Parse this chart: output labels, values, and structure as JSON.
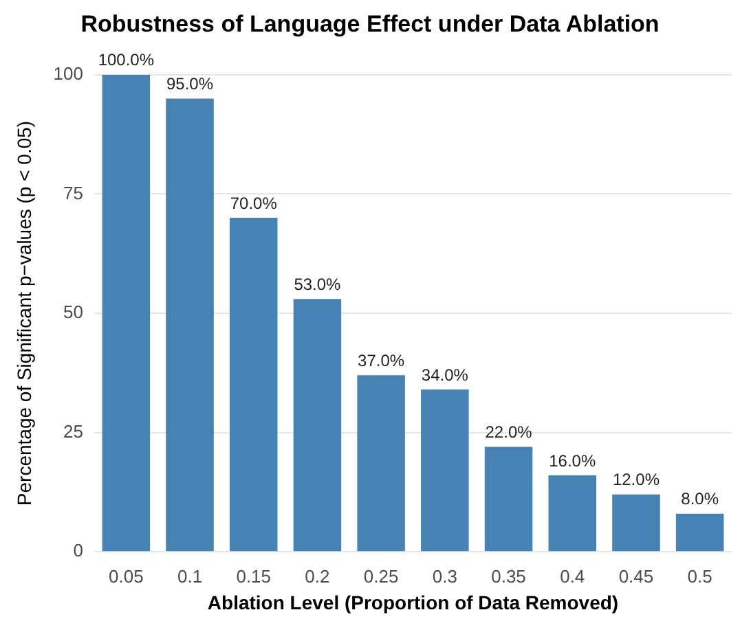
{
  "chart_data": {
    "type": "bar",
    "title": "Robustness of Language Effect under Data Ablation",
    "xlabel": "Ablation Level (Proportion of Data Removed)",
    "ylabel": "Percentage of Significant p−values (p < 0.05)",
    "categories": [
      "0.05",
      "0.1",
      "0.15",
      "0.2",
      "0.25",
      "0.3",
      "0.35",
      "0.4",
      "0.45",
      "0.5"
    ],
    "values": [
      100,
      95,
      70,
      53,
      37,
      34,
      22,
      16,
      12,
      8
    ],
    "value_labels": [
      "100.0%",
      "95.0%",
      "70.0%",
      "53.0%",
      "37.0%",
      "34.0%",
      "22.0%",
      "16.0%",
      "12.0%",
      "8.0%"
    ],
    "color": "#4682b4",
    "ylim": [
      0,
      100
    ],
    "yticks": [
      0,
      25,
      50,
      75,
      100
    ],
    "grid": "y",
    "legend": false
  }
}
